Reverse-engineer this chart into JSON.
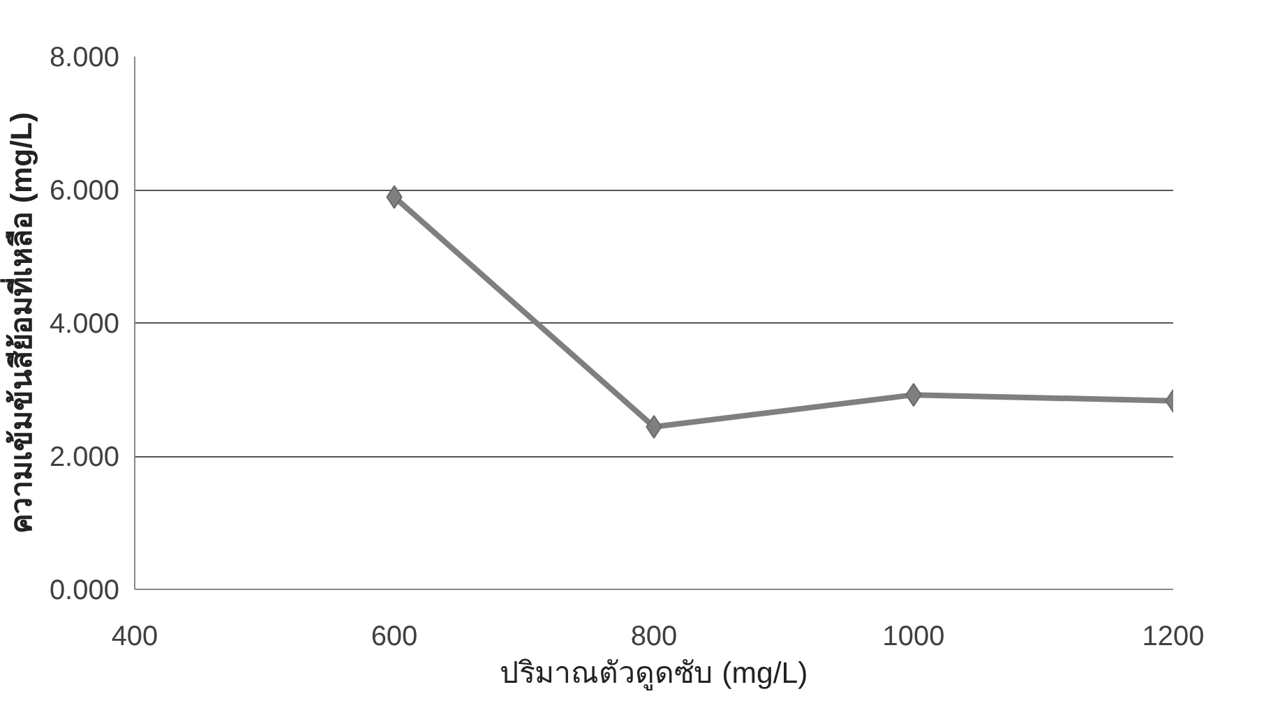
{
  "chart_data": {
    "type": "line",
    "xlabel": "ปริมาณตัวดูดซับ (mg/L)",
    "ylabel": "ความเข้มข้นสีย้อมที่เหลือ (mg/L)",
    "x": [
      600,
      800,
      1000,
      1200
    ],
    "series": [
      {
        "color": "#7f7f7f",
        "values": [
          5.89,
          2.44,
          2.92,
          2.83
        ]
      }
    ],
    "xlim": [
      400,
      1200
    ],
    "xticks": [
      400,
      600,
      800,
      1000,
      1200
    ],
    "ylim": [
      0,
      8
    ],
    "yticks": [
      {
        "value": 0,
        "label": "0.000"
      },
      {
        "value": 2,
        "label": "2.000"
      },
      {
        "value": 4,
        "label": "4.000"
      },
      {
        "value": 6,
        "label": "6.000"
      },
      {
        "value": 8,
        "label": "8.000"
      }
    ],
    "grid": "y",
    "marker": "diamond",
    "line_style": "solid"
  }
}
